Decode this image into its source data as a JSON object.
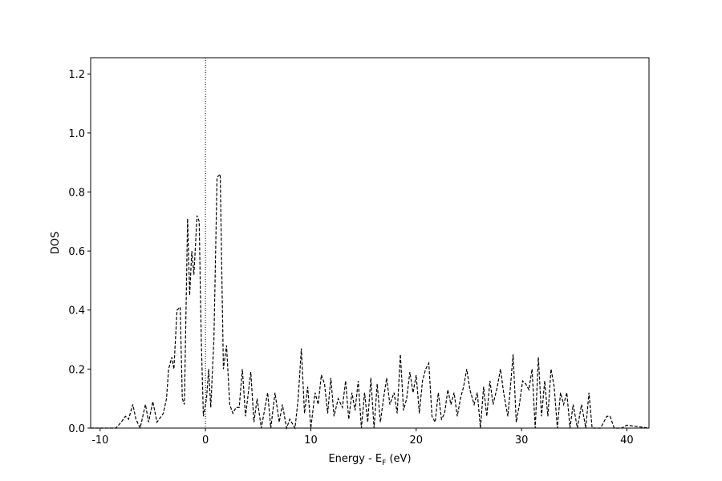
{
  "chart_data": {
    "type": "line",
    "xlabel": [
      "Energy - E",
      "F",
      " (eV)"
    ],
    "ylabel": "DOS",
    "xlim": [
      -10.9,
      42.1
    ],
    "ylim": [
      0,
      1.255
    ],
    "xticks": [
      -10,
      0,
      10,
      20,
      30,
      40
    ],
    "yticks": [
      {
        "value": 0,
        "label": "0.0"
      },
      0.2,
      0.4,
      0.6,
      0.8,
      {
        "value": 1,
        "label": "1.0"
      },
      1.2
    ],
    "vline": 0,
    "series": [
      {
        "color": "#000000",
        "x": [
          -10.9,
          -8.5,
          -8,
          -7.6,
          -7.3,
          -6.9,
          -6.6,
          -6.2,
          -5.7,
          -5.4,
          -5,
          -4.6,
          -4,
          -3.7,
          -3.5,
          -3.2,
          -3,
          -2.7,
          -2.4,
          -2.2,
          -2,
          -1.7,
          -1.5,
          -1.3,
          -1.1,
          -0.8,
          -0.6,
          -0.4,
          -0.2,
          0.1,
          0.3,
          0.5,
          0.8,
          1.1,
          1.4,
          1.7,
          2,
          2.3,
          2.6,
          2.9,
          3.2,
          3.5,
          3.8,
          4.3,
          4.6,
          4.9,
          5.3,
          5.9,
          6.2,
          6.6,
          7,
          7.3,
          7.7,
          8,
          8.5,
          8.8,
          9.1,
          9.4,
          9.7,
          10,
          10.4,
          10.7,
          11,
          11.3,
          11.6,
          11.9,
          12.2,
          12.6,
          13,
          13.3,
          13.6,
          13.9,
          14.2,
          14.5,
          14.8,
          15.1,
          15.4,
          15.7,
          16,
          16.3,
          16.6,
          16.9,
          17.2,
          17.5,
          17.9,
          18.2,
          18.5,
          18.8,
          19.1,
          19.4,
          19.7,
          20,
          20.3,
          20.6,
          20.9,
          21.2,
          21.5,
          21.8,
          22.1,
          22.4,
          22.7,
          23,
          23.3,
          23.6,
          23.9,
          24.2,
          24.5,
          24.8,
          25.1,
          25.5,
          25.8,
          26.1,
          26.4,
          26.7,
          27,
          27.3,
          27.7,
          28,
          28.3,
          28.7,
          28.9,
          29.2,
          29.5,
          29.8,
          30.1,
          30.4,
          30.7,
          31,
          31.3,
          31.6,
          31.9,
          32.2,
          32.5,
          32.8,
          33.1,
          33.4,
          33.7,
          34,
          34.3,
          34.6,
          34.9,
          35.3,
          35.7,
          36.1,
          36.4,
          36.7,
          37.5,
          38.1,
          38.4,
          38.8,
          39.5,
          40,
          42.1
        ],
        "values": [
          0,
          0,
          0.02,
          0.04,
          0.03,
          0.08,
          0.03,
          0,
          0.08,
          0.02,
          0.09,
          0.02,
          0.05,
          0.1,
          0.2,
          0.24,
          0.2,
          0.4,
          0.41,
          0.1,
          0.08,
          0.71,
          0.45,
          0.6,
          0.52,
          0.72,
          0.7,
          0.3,
          0.04,
          0.1,
          0.2,
          0.07,
          0.3,
          0.85,
          0.86,
          0.2,
          0.28,
          0.08,
          0.05,
          0.07,
          0.07,
          0.2,
          0.04,
          0.19,
          0.02,
          0.1,
          0,
          0.12,
          0,
          0.12,
          0.02,
          0.08,
          0,
          0.03,
          0,
          0.1,
          0.27,
          0.05,
          0.14,
          0,
          0.12,
          0.08,
          0.18,
          0.15,
          0.05,
          0.17,
          0.04,
          0.1,
          0.07,
          0.16,
          0.03,
          0.12,
          0.06,
          0.16,
          0,
          0.12,
          0.02,
          0.17,
          0,
          0.15,
          0.02,
          0.1,
          0.17,
          0.08,
          0.12,
          0.05,
          0.25,
          0.06,
          0.1,
          0.19,
          0.12,
          0.18,
          0.05,
          0.16,
          0.2,
          0.22,
          0.04,
          0.02,
          0.12,
          0.03,
          0.05,
          0.13,
          0.08,
          0.12,
          0.04,
          0.1,
          0.14,
          0.2,
          0.13,
          0.08,
          0.12,
          0,
          0.14,
          0.04,
          0.16,
          0.08,
          0.14,
          0.2,
          0.12,
          0.04,
          0.12,
          0.25,
          0.02,
          0.08,
          0.16,
          0.15,
          0.13,
          0.2,
          0,
          0.24,
          0.04,
          0.16,
          0.04,
          0.2,
          0.14,
          0,
          0.12,
          0.08,
          0.12,
          0,
          0.08,
          0,
          0.08,
          0,
          0.12,
          0,
          0,
          0.04,
          0.04,
          0,
          0,
          0.01,
          0
        ]
      }
    ]
  }
}
